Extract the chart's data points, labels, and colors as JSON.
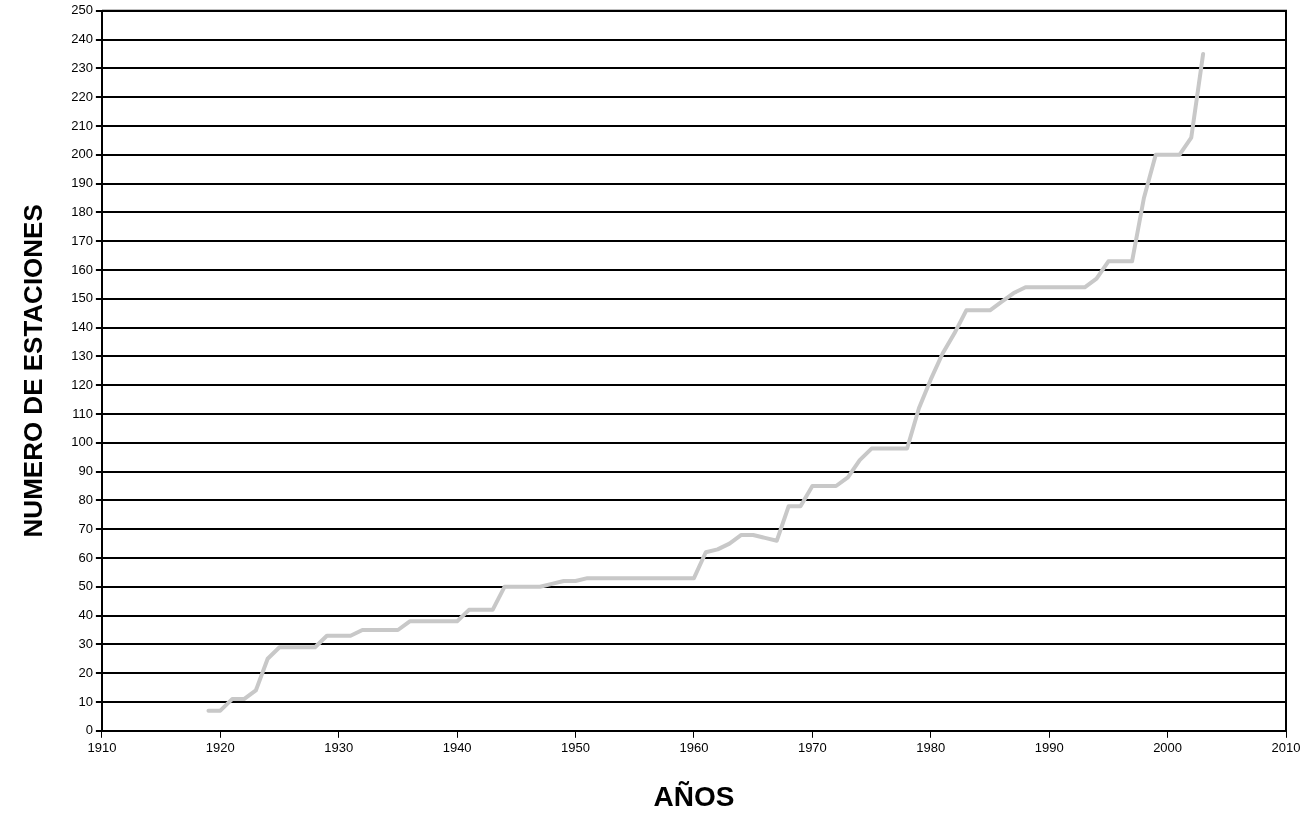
{
  "chart_data": {
    "type": "line",
    "xlabel": "AÑOS",
    "ylabel": "NUMERO DE ESTACIONES",
    "x": [
      1919,
      1920,
      1921,
      1922,
      1923,
      1924,
      1925,
      1926,
      1927,
      1928,
      1929,
      1930,
      1931,
      1932,
      1933,
      1934,
      1935,
      1936,
      1937,
      1938,
      1939,
      1940,
      1941,
      1942,
      1943,
      1944,
      1945,
      1946,
      1947,
      1948,
      1949,
      1950,
      1951,
      1952,
      1953,
      1954,
      1955,
      1956,
      1957,
      1958,
      1959,
      1960,
      1961,
      1962,
      1963,
      1964,
      1965,
      1966,
      1967,
      1968,
      1969,
      1970,
      1971,
      1972,
      1973,
      1974,
      1975,
      1976,
      1977,
      1978,
      1979,
      1980,
      1981,
      1982,
      1983,
      1984,
      1985,
      1986,
      1987,
      1988,
      1989,
      1990,
      1991,
      1992,
      1993,
      1994,
      1995,
      1996,
      1997,
      1998,
      1999,
      2000,
      2001,
      2002,
      2003
    ],
    "series": [
      {
        "color": "#c8c8c8",
        "values": [
          7,
          7,
          11,
          11,
          14,
          25,
          29,
          29,
          29,
          29,
          33,
          33,
          33,
          35,
          35,
          35,
          35,
          38,
          38,
          38,
          38,
          38,
          42,
          42,
          42,
          50,
          50,
          50,
          50,
          51,
          52,
          52,
          53,
          53,
          53,
          53,
          53,
          53,
          53,
          53,
          53,
          53,
          62,
          63,
          65,
          68,
          68,
          67,
          66,
          78,
          78,
          85,
          85,
          85,
          88,
          94,
          98,
          98,
          98,
          98,
          112,
          122,
          131,
          138,
          146,
          146,
          146,
          149,
          152,
          154,
          154,
          154,
          154,
          154,
          154,
          157,
          163,
          163,
          163,
          185,
          200,
          200,
          200,
          206,
          235
        ]
      }
    ],
    "xlim": [
      1910,
      2010
    ],
    "xticks": [
      1910,
      1920,
      1930,
      1940,
      1950,
      1960,
      1970,
      1980,
      1990,
      2000,
      2010
    ],
    "ylim": [
      0,
      250
    ],
    "yticks": [
      0,
      10,
      20,
      30,
      40,
      50,
      60,
      70,
      80,
      90,
      100,
      110,
      120,
      130,
      140,
      150,
      160,
      170,
      180,
      190,
      200,
      210,
      220,
      230,
      240,
      250
    ],
    "grid": "y",
    "marker": "none",
    "line_style": "solid",
    "legend": false
  }
}
